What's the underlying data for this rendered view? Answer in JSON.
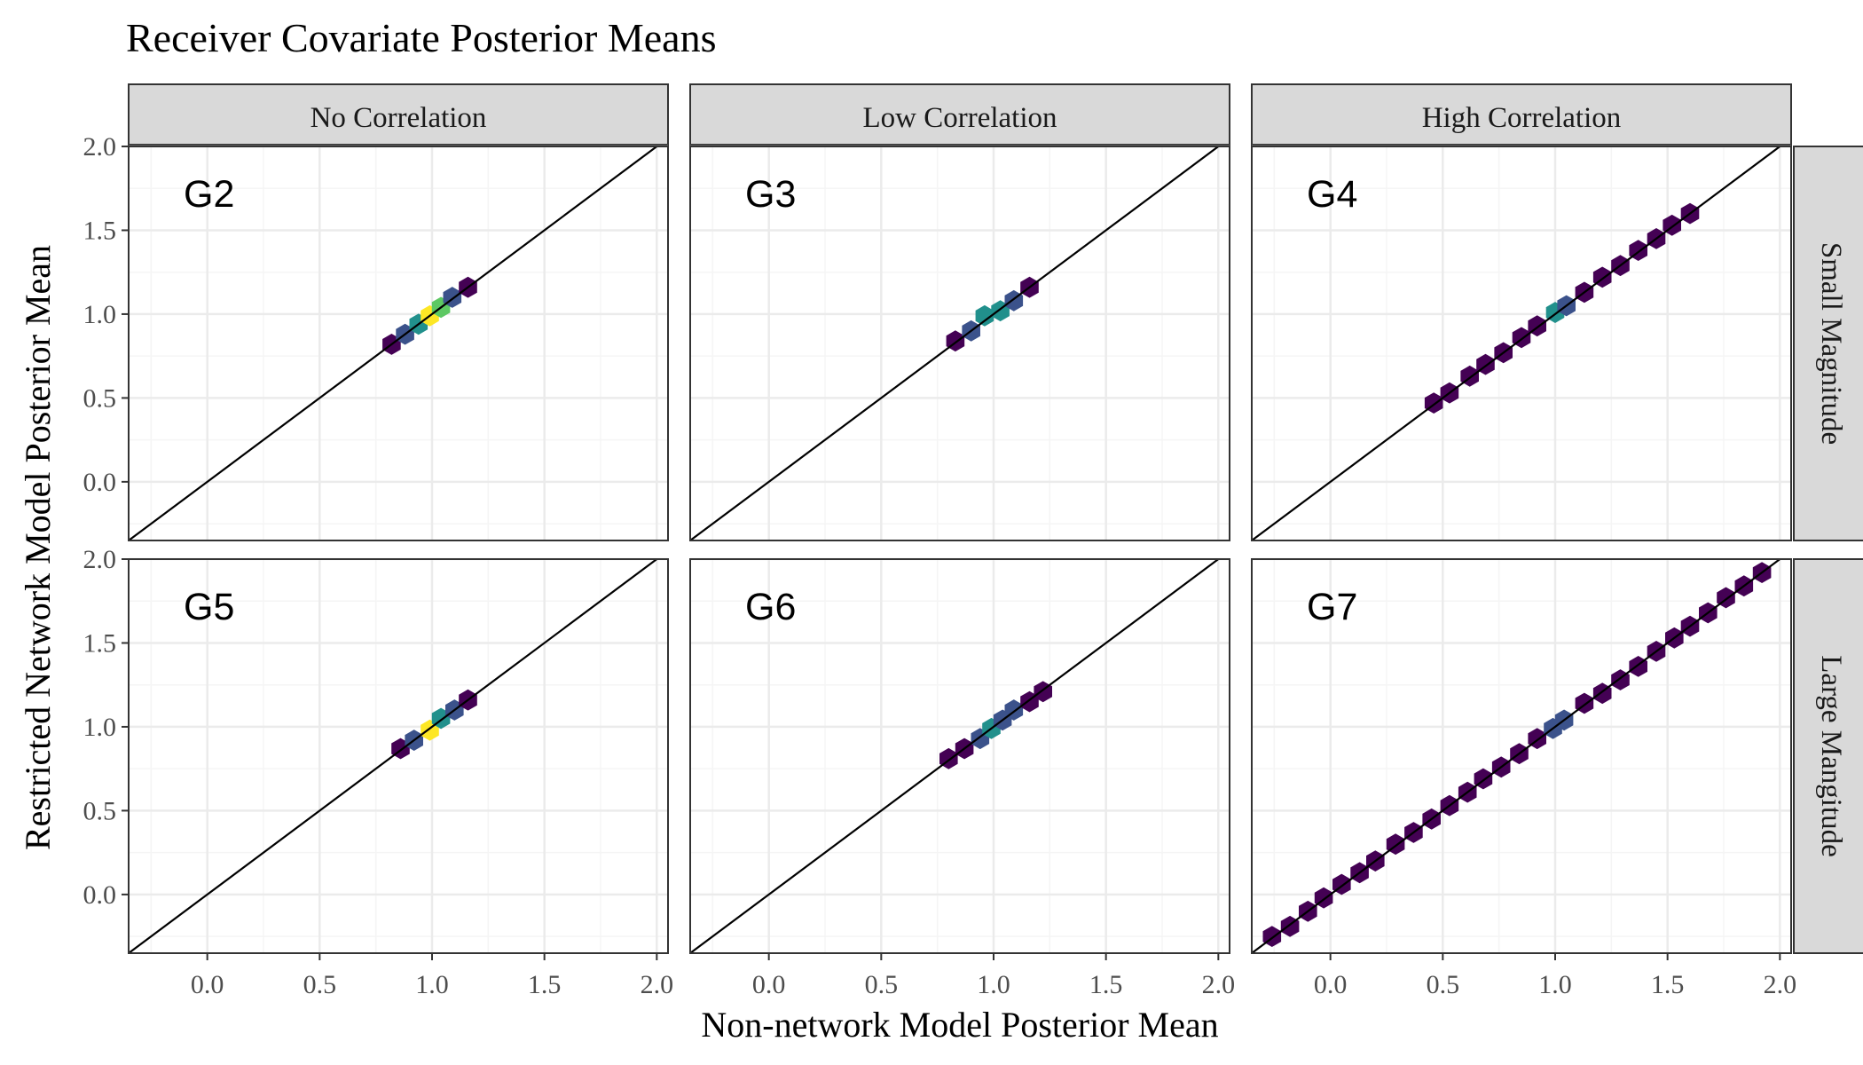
{
  "chart_data": {
    "type": "hexbin",
    "title": "Receiver Covariate Posterior Means",
    "xlabel": "Non-network Model Posterior Mean",
    "ylabel": "Restricted Network Model Posterior Mean",
    "xlim": [
      -0.35,
      2.05
    ],
    "ylim": [
      -0.35,
      2.0
    ],
    "x_ticks": [
      "0.0",
      "0.5",
      "1.0",
      "1.5",
      "2.0"
    ],
    "y_ticks": [
      "0.0",
      "0.5",
      "1.0",
      "1.5",
      "2.0"
    ],
    "columns": [
      "No Correlation",
      "Low Correlation",
      "High Correlation"
    ],
    "rows": [
      "Small Magnitude",
      "Large Mangitude"
    ],
    "reference_line": "y = x",
    "colors": {
      "low": "#440154",
      "mid1": "#3b528b",
      "mid2": "#21908c",
      "mid3": "#5dc863",
      "high": "#fde725",
      "line": "#000000",
      "strip_fill": "#d9d9d9",
      "grid_major": "#ebebeb",
      "grid_minor": "#f5f5f5"
    },
    "panels": [
      {
        "label": "G2",
        "row": 0,
        "col": 0,
        "points": [
          [
            0.82,
            0.82
          ],
          [
            0.88,
            0.88
          ],
          [
            0.94,
            0.94
          ],
          [
            0.99,
            0.99
          ],
          [
            1.04,
            1.04
          ],
          [
            1.09,
            1.1
          ],
          [
            1.16,
            1.16
          ]
        ],
        "counts": [
          0.15,
          0.25,
          0.45,
          1.0,
          0.7,
          0.35,
          0.15
        ]
      },
      {
        "label": "G3",
        "row": 0,
        "col": 1,
        "points": [
          [
            0.83,
            0.84
          ],
          [
            0.9,
            0.9
          ],
          [
            0.96,
            0.99
          ],
          [
            1.03,
            1.02
          ],
          [
            1.09,
            1.08
          ],
          [
            1.16,
            1.16
          ]
        ],
        "counts": [
          0.15,
          0.3,
          0.55,
          0.6,
          0.4,
          0.15
        ]
      },
      {
        "label": "G4",
        "row": 0,
        "col": 2,
        "points": [
          [
            0.46,
            0.47
          ],
          [
            0.53,
            0.53
          ],
          [
            0.62,
            0.63
          ],
          [
            0.69,
            0.7
          ],
          [
            0.77,
            0.77
          ],
          [
            0.85,
            0.86
          ],
          [
            0.92,
            0.93
          ],
          [
            1.0,
            1.01
          ],
          [
            1.05,
            1.05
          ],
          [
            1.13,
            1.13
          ],
          [
            1.21,
            1.22
          ],
          [
            1.29,
            1.29
          ],
          [
            1.37,
            1.38
          ],
          [
            1.45,
            1.45
          ],
          [
            1.52,
            1.53
          ],
          [
            1.6,
            1.6
          ]
        ],
        "counts": [
          0.1,
          0.15,
          0.1,
          0.15,
          0.1,
          0.15,
          0.2,
          0.55,
          0.3,
          0.15,
          0.1,
          0.15,
          0.15,
          0.1,
          0.15,
          0.1
        ]
      },
      {
        "label": "G5",
        "row": 1,
        "col": 0,
        "points": [
          [
            0.86,
            0.87
          ],
          [
            0.92,
            0.92
          ],
          [
            0.99,
            0.98
          ],
          [
            1.04,
            1.05
          ],
          [
            1.1,
            1.1
          ],
          [
            1.16,
            1.16
          ]
        ],
        "counts": [
          0.15,
          0.3,
          0.95,
          0.6,
          0.35,
          0.15
        ]
      },
      {
        "label": "G6",
        "row": 1,
        "col": 1,
        "points": [
          [
            0.8,
            0.81
          ],
          [
            0.87,
            0.87
          ],
          [
            0.94,
            0.93
          ],
          [
            0.99,
            0.99
          ],
          [
            1.04,
            1.04
          ],
          [
            1.09,
            1.1
          ],
          [
            1.16,
            1.15
          ],
          [
            1.22,
            1.21
          ]
        ],
        "counts": [
          0.15,
          0.2,
          0.3,
          0.55,
          0.4,
          0.3,
          0.15,
          0.1
        ]
      },
      {
        "label": "G7",
        "row": 1,
        "col": 2,
        "points": [
          [
            -0.26,
            -0.25
          ],
          [
            -0.18,
            -0.19
          ],
          [
            -0.1,
            -0.1
          ],
          [
            -0.03,
            -0.02
          ],
          [
            0.05,
            0.06
          ],
          [
            0.13,
            0.13
          ],
          [
            0.2,
            0.2
          ],
          [
            0.29,
            0.3
          ],
          [
            0.37,
            0.37
          ],
          [
            0.45,
            0.45
          ],
          [
            0.53,
            0.53
          ],
          [
            0.61,
            0.61
          ],
          [
            0.68,
            0.69
          ],
          [
            0.76,
            0.76
          ],
          [
            0.84,
            0.84
          ],
          [
            0.92,
            0.93
          ],
          [
            0.99,
            0.99
          ],
          [
            1.04,
            1.04
          ],
          [
            1.13,
            1.14
          ],
          [
            1.21,
            1.2
          ],
          [
            1.29,
            1.28
          ],
          [
            1.37,
            1.36
          ],
          [
            1.45,
            1.45
          ],
          [
            1.53,
            1.53
          ],
          [
            1.6,
            1.6
          ],
          [
            1.68,
            1.68
          ],
          [
            1.76,
            1.77
          ],
          [
            1.84,
            1.84
          ],
          [
            1.92,
            1.92
          ]
        ],
        "counts": [
          0.1,
          0.1,
          0.15,
          0.1,
          0.1,
          0.15,
          0.1,
          0.1,
          0.15,
          0.1,
          0.1,
          0.15,
          0.1,
          0.15,
          0.1,
          0.15,
          0.4,
          0.3,
          0.1,
          0.15,
          0.1,
          0.1,
          0.15,
          0.1,
          0.1,
          0.15,
          0.1,
          0.1,
          0.1
        ]
      }
    ]
  }
}
